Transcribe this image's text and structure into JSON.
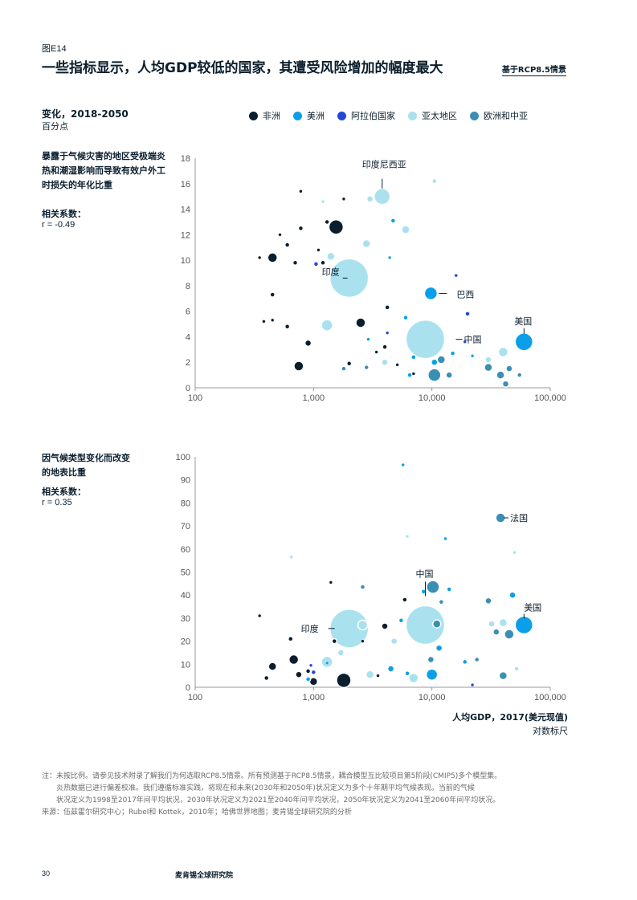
{
  "header": {
    "figure_label": "图E14",
    "title": "一些指标显示，人均GDP较低的国家，其遭受风险增加的幅度最大",
    "scenario": "基于RCP8.5情景"
  },
  "subtitle": "变化，2018-2050",
  "unit": "百分点",
  "legend": [
    {
      "label": "非洲",
      "color": "#0b1e2d"
    },
    {
      "label": "美洲",
      "color": "#0a9fe8"
    },
    {
      "label": "阿拉伯国家",
      "color": "#2347d8"
    },
    {
      "label": "亚太地区",
      "color": "#a9e2ee"
    },
    {
      "label": "欧洲和中亚",
      "color": "#3a8fb5"
    }
  ],
  "panel1": {
    "title": "暴露于气候灾害的地区受极端炎热和潮湿影响而导致有效户外工时损失的年化比重",
    "corr_label": "相关系数：",
    "corr_value": "r = -0.49"
  },
  "panel2": {
    "title": "因气候类型变化而改变的地表比重",
    "corr_label": "相关系数：",
    "corr_value": "r = 0.35"
  },
  "xaxis": {
    "title": "人均GDP，2017(美元现值)",
    "subtitle": "对数标尺"
  },
  "notes": {
    "line1": "注：未按比例。请参见技术附录了解我们为何选取RCP8.5情景。所有预测基于RCP8.5情景，耦合模型互比较项目第5阶段(CMIP5)多个模型集。",
    "line2": "炎热数据已进行偏差校准。我们遵循标准实践，将现在和未来(2030年和2050年)状况定义为多个十年期平均气候表现。当前的气候",
    "line3": "状况定义为1998至2017年间平均状况，2030年状况定义为2021至2040年间平均状况，2050年状况定义为2041至2060年间平均状况。",
    "source": "来源：伍兹霍尔研究中心；Rubel和 Kottek，2010年；哈佛世界地图；麦肯锡全球研究院的分析"
  },
  "footer": {
    "page_number": "30",
    "publisher": "麦肯锡全球研究院"
  },
  "colors": {
    "africa": "#0b1e2d",
    "americas": "#0a9fe8",
    "arab": "#2347d8",
    "asia_pacific": "#a9e2ee",
    "europe_central_asia": "#3a8fb5",
    "axis": "#999999"
  },
  "chart_data": [
    {
      "type": "scatter",
      "title": "暴露于气候灾害的地区受极端炎热和潮湿影响而导致有效户外工时损失的年化比重",
      "xlabel": "人均GDP，2017(美元现值)",
      "ylabel": "",
      "xscale": "log",
      "xlim": [
        100,
        100000
      ],
      "ylim": [
        0,
        18
      ],
      "xticks": [
        100,
        1000,
        10000,
        100000
      ],
      "xtick_labels": [
        "100",
        "1,000",
        "10,000",
        "100,000"
      ],
      "yticks": [
        0,
        2,
        4,
        6,
        8,
        10,
        12,
        14,
        16,
        18
      ],
      "correlation": -0.49,
      "annotations": [
        {
          "label": "印度尼西亚",
          "x": 3800,
          "y": 15.0
        },
        {
          "label": "印度",
          "x": 2000,
          "y": 8.6
        },
        {
          "label": "巴西",
          "x": 9800,
          "y": 7.4
        },
        {
          "label": "中国",
          "x": 8800,
          "y": 3.8
        },
        {
          "label": "美国",
          "x": 60000,
          "y": 3.6
        }
      ],
      "points": [
        {
          "region": "africa",
          "x": 350,
          "y": 10.2,
          "s": 2
        },
        {
          "region": "africa",
          "x": 450,
          "y": 10.2,
          "s": 6
        },
        {
          "region": "africa",
          "x": 520,
          "y": 12.0,
          "s": 2
        },
        {
          "region": "africa",
          "x": 600,
          "y": 11.2,
          "s": 3
        },
        {
          "region": "africa",
          "x": 700,
          "y": 9.8,
          "s": 3
        },
        {
          "region": "africa",
          "x": 780,
          "y": 12.5,
          "s": 3
        },
        {
          "region": "africa",
          "x": 780,
          "y": 15.4,
          "s": 2
        },
        {
          "region": "africa",
          "x": 450,
          "y": 7.3,
          "s": 3
        },
        {
          "region": "africa",
          "x": 380,
          "y": 5.2,
          "s": 2
        },
        {
          "region": "africa",
          "x": 450,
          "y": 5.3,
          "s": 2
        },
        {
          "region": "africa",
          "x": 600,
          "y": 4.8,
          "s": 3
        },
        {
          "region": "africa",
          "x": 900,
          "y": 3.5,
          "s": 4
        },
        {
          "region": "africa",
          "x": 750,
          "y": 1.7,
          "s": 6
        },
        {
          "region": "africa",
          "x": 1200,
          "y": 9.8,
          "s": 3
        },
        {
          "region": "africa",
          "x": 1300,
          "y": 13.0,
          "s": 3
        },
        {
          "region": "africa",
          "x": 1550,
          "y": 12.6,
          "s": 9
        },
        {
          "region": "africa",
          "x": 1800,
          "y": 14.8,
          "s": 2
        },
        {
          "region": "africa",
          "x": 2500,
          "y": 5.1,
          "s": 6
        },
        {
          "region": "africa",
          "x": 2000,
          "y": 1.9,
          "s": 3
        },
        {
          "region": "africa",
          "x": 3400,
          "y": 2.8,
          "s": 2
        },
        {
          "region": "africa",
          "x": 4000,
          "y": 3.2,
          "s": 3
        },
        {
          "region": "africa",
          "x": 4200,
          "y": 6.3,
          "s": 3
        },
        {
          "region": "africa",
          "x": 5100,
          "y": 1.8,
          "s": 2
        },
        {
          "region": "africa",
          "x": 7000,
          "y": 1.1,
          "s": 2
        },
        {
          "region": "africa",
          "x": 1100,
          "y": 10.8,
          "s": 2
        },
        {
          "region": "americas",
          "x": 2900,
          "y": 3.8,
          "s": 2
        },
        {
          "region": "americas",
          "x": 4400,
          "y": 10.2,
          "s": 2
        },
        {
          "region": "americas",
          "x": 4700,
          "y": 13.1,
          "s": 3
        },
        {
          "region": "americas",
          "x": 6000,
          "y": 5.5,
          "s": 3
        },
        {
          "region": "americas",
          "x": 9800,
          "y": 7.4,
          "s": 8
        },
        {
          "region": "americas",
          "x": 10500,
          "y": 2.0,
          "s": 4
        },
        {
          "region": "americas",
          "x": 15000,
          "y": 2.7,
          "s": 3
        },
        {
          "region": "americas",
          "x": 22000,
          "y": 2.5,
          "s": 2
        },
        {
          "region": "americas",
          "x": 60000,
          "y": 3.6,
          "s": 11
        },
        {
          "region": "americas",
          "x": 7000,
          "y": 2.4,
          "s": 3
        },
        {
          "region": "americas",
          "x": 6500,
          "y": 1.0,
          "s": 3
        },
        {
          "region": "arab",
          "x": 1050,
          "y": 9.7,
          "s": 3
        },
        {
          "region": "arab",
          "x": 4200,
          "y": 4.3,
          "s": 2
        },
        {
          "region": "arab",
          "x": 16000,
          "y": 8.8,
          "s": 2
        },
        {
          "region": "arab",
          "x": 20000,
          "y": 5.8,
          "s": 3
        },
        {
          "region": "arab",
          "x": 19000,
          "y": 3.6,
          "s": 2
        },
        {
          "region": "asia_pacific",
          "x": 2000,
          "y": 8.6,
          "s": 24
        },
        {
          "region": "asia_pacific",
          "x": 3800,
          "y": 15.0,
          "s": 10
        },
        {
          "region": "asia_pacific",
          "x": 3000,
          "y": 14.8,
          "s": 4
        },
        {
          "region": "asia_pacific",
          "x": 8800,
          "y": 3.8,
          "s": 24
        },
        {
          "region": "asia_pacific",
          "x": 1300,
          "y": 4.9,
          "s": 7
        },
        {
          "region": "asia_pacific",
          "x": 2800,
          "y": 11.3,
          "s": 5
        },
        {
          "region": "asia_pacific",
          "x": 1400,
          "y": 10.3,
          "s": 5
        },
        {
          "region": "asia_pacific",
          "x": 6000,
          "y": 12.4,
          "s": 5
        },
        {
          "region": "asia_pacific",
          "x": 10500,
          "y": 16.2,
          "s": 3
        },
        {
          "region": "asia_pacific",
          "x": 1200,
          "y": 14.6,
          "s": 2
        },
        {
          "region": "asia_pacific",
          "x": 40000,
          "y": 2.8,
          "s": 6
        },
        {
          "region": "asia_pacific",
          "x": 30000,
          "y": 2.2,
          "s": 4
        },
        {
          "region": "asia_pacific",
          "x": 4000,
          "y": 2.0,
          "s": 4
        },
        {
          "region": "europe_central_asia",
          "x": 1800,
          "y": 1.5,
          "s": 3
        },
        {
          "region": "europe_central_asia",
          "x": 2800,
          "y": 1.6,
          "s": 3
        },
        {
          "region": "europe_central_asia",
          "x": 10500,
          "y": 1.0,
          "s": 8
        },
        {
          "region": "europe_central_asia",
          "x": 14000,
          "y": 1.0,
          "s": 4
        },
        {
          "region": "europe_central_asia",
          "x": 12000,
          "y": 2.2,
          "s": 5
        },
        {
          "region": "europe_central_asia",
          "x": 30000,
          "y": 1.6,
          "s": 5
        },
        {
          "region": "europe_central_asia",
          "x": 38000,
          "y": 1.0,
          "s": 5
        },
        {
          "region": "europe_central_asia",
          "x": 45000,
          "y": 1.5,
          "s": 4
        },
        {
          "region": "europe_central_asia",
          "x": 42000,
          "y": 0.3,
          "s": 4
        },
        {
          "region": "europe_central_asia",
          "x": 55000,
          "y": 1.0,
          "s": 3
        }
      ]
    },
    {
      "type": "scatter",
      "title": "因气候类型变化而改变的地表比重",
      "xlabel": "人均GDP，2017(美元现值)",
      "ylabel": "",
      "xscale": "log",
      "xlim": [
        100,
        100000
      ],
      "ylim": [
        0,
        100
      ],
      "xticks": [
        100,
        1000,
        10000,
        100000
      ],
      "xtick_labels": [
        "100",
        "1,000",
        "10,000",
        "100,000"
      ],
      "yticks": [
        0,
        10,
        20,
        30,
        40,
        50,
        60,
        70,
        80,
        90,
        100
      ],
      "correlation": 0.35,
      "annotations": [
        {
          "label": "法国",
          "x": 38000,
          "y": 73.5
        },
        {
          "label": "中国",
          "x": 8800,
          "y": 27.0
        },
        {
          "label": "印度",
          "x": 2000,
          "y": 25.5
        },
        {
          "label": "美国",
          "x": 60000,
          "y": 27.0
        }
      ],
      "points": [
        {
          "region": "africa",
          "x": 350,
          "y": 31.0,
          "s": 2
        },
        {
          "region": "africa",
          "x": 450,
          "y": 9.0,
          "s": 5
        },
        {
          "region": "africa",
          "x": 400,
          "y": 4.0,
          "s": 3
        },
        {
          "region": "africa",
          "x": 680,
          "y": 12.0,
          "s": 6
        },
        {
          "region": "africa",
          "x": 640,
          "y": 21.0,
          "s": 3
        },
        {
          "region": "africa",
          "x": 750,
          "y": 5.5,
          "s": 4
        },
        {
          "region": "africa",
          "x": 900,
          "y": 7.0,
          "s": 3
        },
        {
          "region": "africa",
          "x": 1000,
          "y": 2.5,
          "s": 5
        },
        {
          "region": "africa",
          "x": 1400,
          "y": 45.5,
          "s": 2
        },
        {
          "region": "africa",
          "x": 1500,
          "y": 20.0,
          "s": 3
        },
        {
          "region": "africa",
          "x": 1800,
          "y": 3.0,
          "s": 9
        },
        {
          "region": "africa",
          "x": 2600,
          "y": 20.0,
          "s": 2
        },
        {
          "region": "africa",
          "x": 4000,
          "y": 26.5,
          "s": 4
        },
        {
          "region": "africa",
          "x": 5900,
          "y": 38.0,
          "s": 3
        },
        {
          "region": "africa",
          "x": 3500,
          "y": 5.0,
          "s": 2
        },
        {
          "region": "americas",
          "x": 4500,
          "y": 8.0,
          "s": 4
        },
        {
          "region": "americas",
          "x": 5500,
          "y": 29.0,
          "s": 3
        },
        {
          "region": "americas",
          "x": 6200,
          "y": 6.0,
          "s": 3
        },
        {
          "region": "americas",
          "x": 8500,
          "y": 41.5,
          "s": 3
        },
        {
          "region": "americas",
          "x": 10000,
          "y": 5.5,
          "s": 7
        },
        {
          "region": "americas",
          "x": 11500,
          "y": 17.0,
          "s": 4
        },
        {
          "region": "americas",
          "x": 14000,
          "y": 42.5,
          "s": 3
        },
        {
          "region": "americas",
          "x": 19000,
          "y": 11.0,
          "s": 3
        },
        {
          "region": "americas",
          "x": 48000,
          "y": 40.0,
          "s": 4
        },
        {
          "region": "americas",
          "x": 60000,
          "y": 27.0,
          "s": 11
        },
        {
          "region": "americas",
          "x": 13000,
          "y": 64.5,
          "s": 2
        },
        {
          "region": "americas",
          "x": 5700,
          "y": 96.5,
          "s": 2
        },
        {
          "region": "americas",
          "x": 1300,
          "y": 10.5,
          "s": 2
        },
        {
          "region": "americas",
          "x": 900,
          "y": 3.5,
          "s": 3
        },
        {
          "region": "arab",
          "x": 1000,
          "y": 6.5,
          "s": 3
        },
        {
          "region": "arab",
          "x": 950,
          "y": 9.5,
          "s": 2
        },
        {
          "region": "arab",
          "x": 22000,
          "y": 1.0,
          "s": 2
        },
        {
          "region": "asia_pacific",
          "x": 2000,
          "y": 25.5,
          "s": 24
        },
        {
          "region": "asia_pacific",
          "x": 8800,
          "y": 27.0,
          "s": 24
        },
        {
          "region": "asia_pacific",
          "x": 2600,
          "y": 27.0,
          "s": 6
        },
        {
          "region": "asia_pacific",
          "x": 1300,
          "y": 11.0,
          "s": 7
        },
        {
          "region": "asia_pacific",
          "x": 3000,
          "y": 5.5,
          "s": 5
        },
        {
          "region": "asia_pacific",
          "x": 7000,
          "y": 4.0,
          "s": 6
        },
        {
          "region": "asia_pacific",
          "x": 40000,
          "y": 28.0,
          "s": 5
        },
        {
          "region": "asia_pacific",
          "x": 32000,
          "y": 27.5,
          "s": 4
        },
        {
          "region": "asia_pacific",
          "x": 50000,
          "y": 58.5,
          "s": 2
        },
        {
          "region": "asia_pacific",
          "x": 6200,
          "y": 65.5,
          "s": 2
        },
        {
          "region": "asia_pacific",
          "x": 4800,
          "y": 20.0,
          "s": 4
        },
        {
          "region": "asia_pacific",
          "x": 650,
          "y": 56.5,
          "s": 2
        },
        {
          "region": "asia_pacific",
          "x": 1700,
          "y": 15.0,
          "s": 4
        },
        {
          "region": "asia_pacific",
          "x": 52000,
          "y": 8.0,
          "s": 3
        },
        {
          "region": "europe_central_asia",
          "x": 2600,
          "y": 43.5,
          "s": 3
        },
        {
          "region": "europe_central_asia",
          "x": 10200,
          "y": 43.5,
          "s": 8
        },
        {
          "region": "europe_central_asia",
          "x": 11000,
          "y": 27.5,
          "s": 5
        },
        {
          "region": "europe_central_asia",
          "x": 12000,
          "y": 37.0,
          "s": 3
        },
        {
          "region": "europe_central_asia",
          "x": 9800,
          "y": 12.0,
          "s": 4
        },
        {
          "region": "europe_central_asia",
          "x": 30000,
          "y": 37.5,
          "s": 4
        },
        {
          "region": "europe_central_asia",
          "x": 38000,
          "y": 73.5,
          "s": 6
        },
        {
          "region": "europe_central_asia",
          "x": 45000,
          "y": 23.0,
          "s": 6
        },
        {
          "region": "europe_central_asia",
          "x": 40000,
          "y": 5.0,
          "s": 5
        },
        {
          "region": "europe_central_asia",
          "x": 35000,
          "y": 24.0,
          "s": 4
        },
        {
          "region": "europe_central_asia",
          "x": 24000,
          "y": 12.0,
          "s": 3
        }
      ]
    }
  ]
}
